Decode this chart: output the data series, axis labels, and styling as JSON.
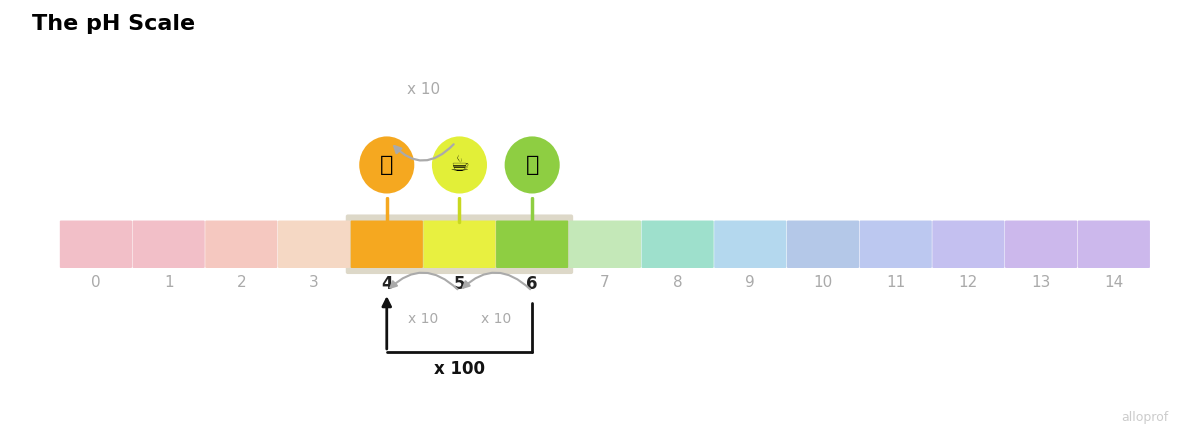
{
  "title": "The pH Scale",
  "title_fontsize": 16,
  "title_fontweight": "bold",
  "ph_values": [
    0,
    1,
    2,
    3,
    4,
    5,
    6,
    7,
    8,
    9,
    10,
    11,
    12,
    13,
    14
  ],
  "bar_colors": [
    "#f2bfc8",
    "#f2bfc8",
    "#f5c8c0",
    "#f5d8c4",
    "#f5a820",
    "#e8f040",
    "#8ece42",
    "#c4e8b8",
    "#9ee0cc",
    "#b4d8ee",
    "#b4c8e8",
    "#bcc8f0",
    "#c4c0f0",
    "#ccb8ec",
    "#ccb8ec"
  ],
  "highlight_bg": "#ddd8c8",
  "circle_colors": [
    "#f5a820",
    "#e2ef38",
    "#8ece42"
  ],
  "stem_colors": [
    "#f5a820",
    "#c8d820",
    "#8ece42"
  ],
  "icon_emojis": [
    "🍅",
    "☕",
    "🥛"
  ],
  "arrow_top_label": "x 10",
  "arrow_bottom_label_small": "x 10",
  "arrow_bottom_label_big": "x 100",
  "watermark": "alloprof",
  "background_color": "#ffffff",
  "gray_arrow_color": "#aaaaaa",
  "black_arrow_color": "#111111"
}
